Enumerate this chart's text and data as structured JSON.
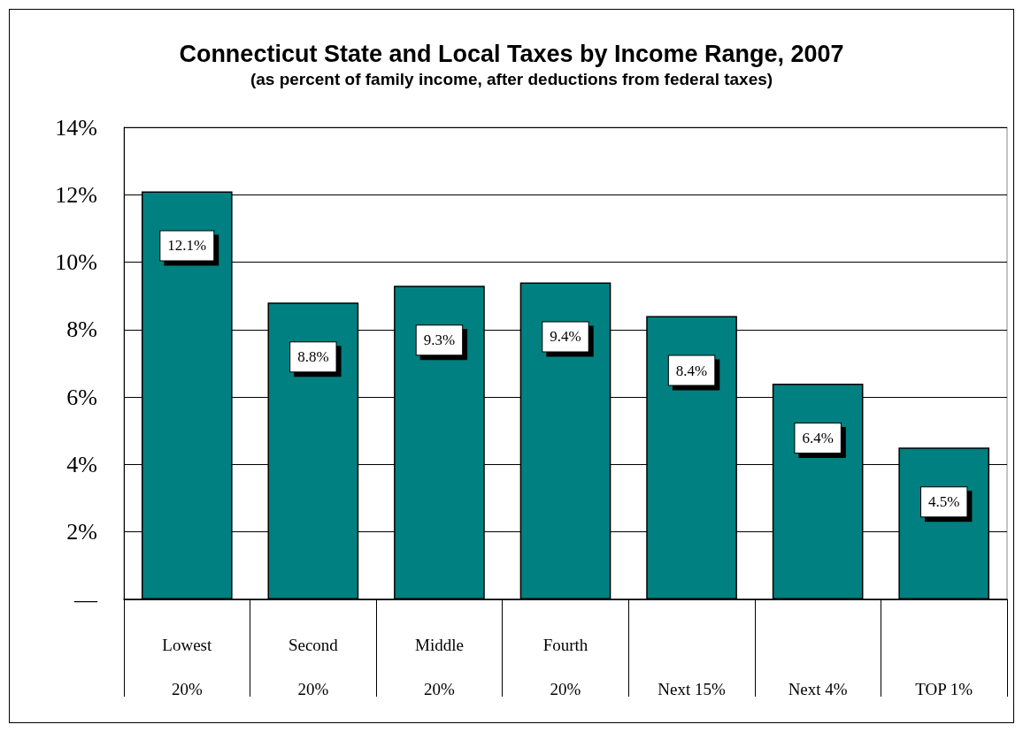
{
  "chart_data": {
    "type": "bar",
    "title": "Connecticut State and Local Taxes by Income Range, 2007",
    "subtitle": "(as percent of family income, after deductions from federal taxes)",
    "categories": [
      "Lowest\n20%",
      "Second\n20%",
      "Middle\n20%",
      "Fourth\n20%",
      "Next 15%",
      "Next 4%",
      "TOP 1%"
    ],
    "values": [
      12.1,
      8.8,
      9.3,
      9.4,
      8.4,
      6.4,
      4.5
    ],
    "color": "#008080",
    "value_labels": [
      "12.1%",
      "8.8%",
      "9.3%",
      "9.4%",
      "8.4%",
      "6.4%",
      "4.5%"
    ],
    "ylim": [
      0,
      14
    ],
    "yticks": [
      {
        "value": 0,
        "label": "—"
      },
      {
        "value": 2,
        "label": "2%"
      },
      {
        "value": 4,
        "label": "4%"
      },
      {
        "value": 6,
        "label": "6%"
      },
      {
        "value": 8,
        "label": "8%"
      },
      {
        "value": 10,
        "label": "10%"
      },
      {
        "value": 12,
        "label": "12%"
      },
      {
        "value": 14,
        "label": "14%"
      }
    ],
    "grid": "y"
  }
}
